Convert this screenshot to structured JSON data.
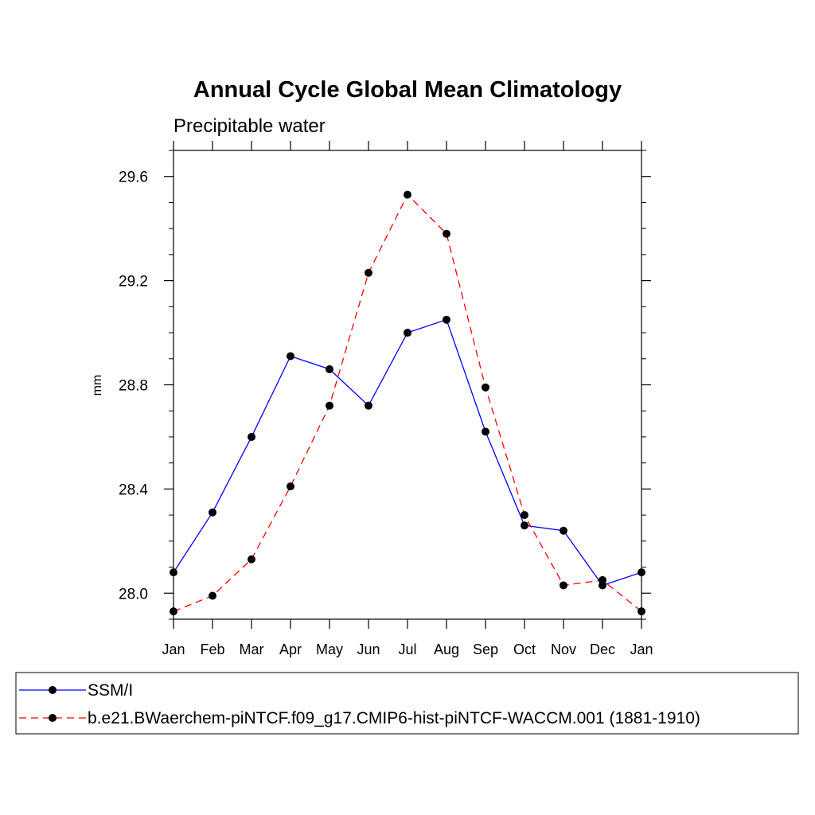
{
  "chart_data": {
    "type": "line",
    "title": "Annual Cycle Global Mean Climatology",
    "subtitle": "Precipitable water",
    "xlabel": "",
    "ylabel": "mm",
    "categories": [
      "Jan",
      "Feb",
      "Mar",
      "Apr",
      "May",
      "Jun",
      "Jul",
      "Aug",
      "Sep",
      "Oct",
      "Nov",
      "Dec",
      "Jan"
    ],
    "ylim": [
      27.9,
      29.7
    ],
    "yticks": [
      28.0,
      28.4,
      28.8,
      29.2,
      29.6
    ],
    "ytick_labels": [
      "28.0",
      "28.4",
      "28.8",
      "29.2",
      "29.6"
    ],
    "series": [
      {
        "name": "SSM/I",
        "color": "#0000ff",
        "dash": "solid",
        "values": [
          28.08,
          28.31,
          28.6,
          28.91,
          28.86,
          28.72,
          29.0,
          29.05,
          28.62,
          28.26,
          28.24,
          28.03,
          28.08
        ]
      },
      {
        "name": "b.e21.BWaerchem-piNTCF.f09_g17.CMIP6-hist-piNTCF-WACCM.001 (1881-1910)",
        "color": "#ff0000",
        "dash": "dashed",
        "values": [
          27.93,
          27.99,
          28.13,
          28.41,
          28.72,
          29.23,
          29.53,
          29.38,
          28.79,
          28.3,
          28.03,
          28.05,
          27.93
        ]
      }
    ],
    "legend": {
      "placement": "bottom",
      "marker_color": "#000000"
    }
  }
}
